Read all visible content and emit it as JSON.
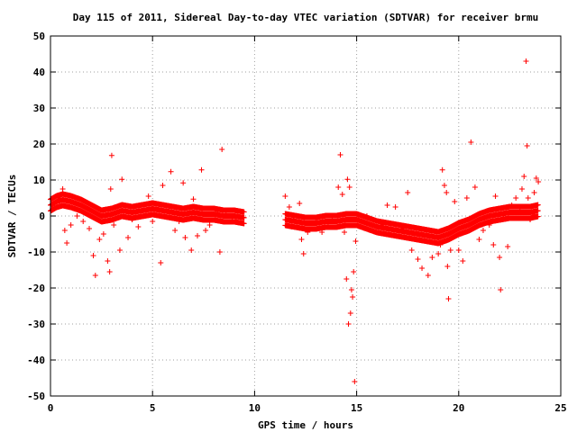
{
  "chart_data": {
    "type": "scatter",
    "title": "Day 115 of 2011, Sidereal Day-to-day VTEC variation (SDTVAR) for receiver brmu",
    "xlabel": "GPS time / hours",
    "ylabel": "SDTVAR / TECUs",
    "xlim": [
      0,
      25
    ],
    "ylim": [
      -50,
      50
    ],
    "xticks": [
      0,
      5,
      10,
      15,
      20,
      25
    ],
    "yticks": [
      -50,
      -40,
      -30,
      -20,
      -10,
      0,
      10,
      20,
      30,
      40,
      50
    ],
    "grid": true,
    "marker": "+",
    "color": "#ff0000",
    "band_series": [
      [
        0.0,
        3.0
      ],
      [
        0.3,
        4.0
      ],
      [
        0.6,
        4.5
      ],
      [
        1.0,
        4.0
      ],
      [
        1.5,
        3.0
      ],
      [
        2.0,
        1.5
      ],
      [
        2.5,
        0.0
      ],
      [
        3.0,
        0.5
      ],
      [
        3.5,
        1.5
      ],
      [
        4.0,
        1.0
      ],
      [
        4.5,
        1.5
      ],
      [
        5.0,
        2.0
      ],
      [
        5.5,
        1.5
      ],
      [
        6.0,
        1.0
      ],
      [
        6.5,
        0.5
      ],
      [
        7.0,
        1.0
      ],
      [
        7.5,
        0.5
      ],
      [
        8.0,
        0.5
      ],
      [
        8.5,
        0.0
      ],
      [
        9.0,
        0.0
      ],
      [
        9.5,
        -0.5
      ],
      [
        11.5,
        -1.0
      ],
      [
        12.0,
        -1.5
      ],
      [
        12.5,
        -2.0
      ],
      [
        13.0,
        -2.0
      ],
      [
        13.5,
        -1.5
      ],
      [
        14.0,
        -1.5
      ],
      [
        14.5,
        -1.0
      ],
      [
        15.0,
        -1.0
      ],
      [
        15.5,
        -2.0
      ],
      [
        16.0,
        -3.0
      ],
      [
        16.5,
        -3.5
      ],
      [
        17.0,
        -4.0
      ],
      [
        17.5,
        -4.5
      ],
      [
        18.0,
        -5.0
      ],
      [
        18.5,
        -5.5
      ],
      [
        19.0,
        -6.0
      ],
      [
        19.5,
        -5.0
      ],
      [
        20.0,
        -3.5
      ],
      [
        20.5,
        -2.5
      ],
      [
        21.0,
        -1.0
      ],
      [
        21.5,
        0.0
      ],
      [
        22.0,
        0.5
      ],
      [
        22.5,
        1.0
      ],
      [
        23.0,
        1.0
      ],
      [
        23.5,
        1.0
      ],
      [
        23.9,
        1.5
      ]
    ],
    "points": [
      [
        0.1,
        2.0
      ],
      [
        0.2,
        3.5
      ],
      [
        0.4,
        5.0
      ],
      [
        0.6,
        7.5
      ],
      [
        0.7,
        -4.0
      ],
      [
        0.8,
        -7.5
      ],
      [
        1.0,
        -2.5
      ],
      [
        1.3,
        0.0
      ],
      [
        1.6,
        -1.5
      ],
      [
        1.9,
        -3.5
      ],
      [
        2.1,
        -11.0
      ],
      [
        2.2,
        -16.5
      ],
      [
        2.4,
        -6.5
      ],
      [
        2.6,
        -5.0
      ],
      [
        2.8,
        -12.5
      ],
      [
        2.9,
        -15.5
      ],
      [
        2.95,
        7.5
      ],
      [
        3.0,
        16.8
      ],
      [
        3.1,
        -2.5
      ],
      [
        3.4,
        -9.5
      ],
      [
        3.5,
        10.2
      ],
      [
        3.8,
        -6.0
      ],
      [
        4.0,
        -1.0
      ],
      [
        4.3,
        -3.0
      ],
      [
        4.8,
        5.5
      ],
      [
        5.0,
        -1.5
      ],
      [
        5.3,
        3.0
      ],
      [
        5.4,
        -13.0
      ],
      [
        5.5,
        8.5
      ],
      [
        5.8,
        2.5
      ],
      [
        5.9,
        12.3
      ],
      [
        6.1,
        -4.0
      ],
      [
        6.3,
        -1.5
      ],
      [
        6.5,
        9.2
      ],
      [
        6.6,
        -6.0
      ],
      [
        6.9,
        -9.5
      ],
      [
        7.0,
        4.7
      ],
      [
        7.2,
        -5.5
      ],
      [
        7.4,
        12.8
      ],
      [
        7.6,
        -4.0
      ],
      [
        7.8,
        -2.5
      ],
      [
        8.1,
        1.0
      ],
      [
        8.3,
        -10.0
      ],
      [
        8.4,
        18.5
      ],
      [
        8.6,
        1.5
      ],
      [
        8.9,
        -0.5
      ],
      [
        9.1,
        -1.5
      ],
      [
        9.4,
        -2.0
      ],
      [
        11.5,
        5.5
      ],
      [
        11.7,
        2.5
      ],
      [
        11.8,
        -3.0
      ],
      [
        11.9,
        -1.0
      ],
      [
        12.2,
        3.5
      ],
      [
        12.3,
        -6.5
      ],
      [
        12.4,
        -10.5
      ],
      [
        12.6,
        -4.5
      ],
      [
        13.0,
        -0.5
      ],
      [
        13.3,
        -4.5
      ],
      [
        13.6,
        -2.0
      ],
      [
        13.8,
        -0.5
      ],
      [
        14.1,
        8.0
      ],
      [
        14.2,
        17.0
      ],
      [
        14.3,
        6.0
      ],
      [
        14.4,
        -4.5
      ],
      [
        14.5,
        -17.5
      ],
      [
        14.55,
        10.2
      ],
      [
        14.6,
        -30.0
      ],
      [
        14.65,
        8.0
      ],
      [
        14.7,
        -27.0
      ],
      [
        14.75,
        -20.5
      ],
      [
        14.8,
        -22.5
      ],
      [
        14.85,
        -15.5
      ],
      [
        14.9,
        -46.0
      ],
      [
        14.95,
        -7.0
      ],
      [
        15.1,
        -1.0
      ],
      [
        15.5,
        0.0
      ],
      [
        15.8,
        -1.0
      ],
      [
        16.2,
        -2.5
      ],
      [
        16.5,
        3.0
      ],
      [
        16.9,
        2.5
      ],
      [
        17.2,
        -3.5
      ],
      [
        17.5,
        6.5
      ],
      [
        17.7,
        -9.5
      ],
      [
        18.0,
        -12.0
      ],
      [
        18.2,
        -14.5
      ],
      [
        18.5,
        -16.5
      ],
      [
        18.7,
        -11.5
      ],
      [
        19.0,
        -10.5
      ],
      [
        19.1,
        -8.0
      ],
      [
        19.2,
        12.8
      ],
      [
        19.3,
        8.5
      ],
      [
        19.4,
        6.5
      ],
      [
        19.45,
        -14.0
      ],
      [
        19.5,
        -23.0
      ],
      [
        19.6,
        -9.5
      ],
      [
        19.8,
        4.0
      ],
      [
        20.0,
        -9.5
      ],
      [
        20.2,
        -12.5
      ],
      [
        20.4,
        5.0
      ],
      [
        20.6,
        20.5
      ],
      [
        20.8,
        8.0
      ],
      [
        21.0,
        -6.5
      ],
      [
        21.2,
        -4.0
      ],
      [
        21.5,
        -2.5
      ],
      [
        21.7,
        -8.0
      ],
      [
        21.8,
        5.5
      ],
      [
        22.0,
        -11.5
      ],
      [
        22.05,
        -20.5
      ],
      [
        22.2,
        0.5
      ],
      [
        22.4,
        -8.5
      ],
      [
        22.6,
        3.0
      ],
      [
        22.8,
        5.0
      ],
      [
        23.0,
        2.0
      ],
      [
        23.1,
        7.5
      ],
      [
        23.2,
        11.0
      ],
      [
        23.3,
        43.0
      ],
      [
        23.35,
        19.5
      ],
      [
        23.4,
        5.0
      ],
      [
        23.5,
        -1.0
      ],
      [
        23.6,
        0.5
      ],
      [
        23.7,
        6.5
      ],
      [
        23.8,
        10.5
      ],
      [
        23.9,
        9.5
      ]
    ]
  }
}
